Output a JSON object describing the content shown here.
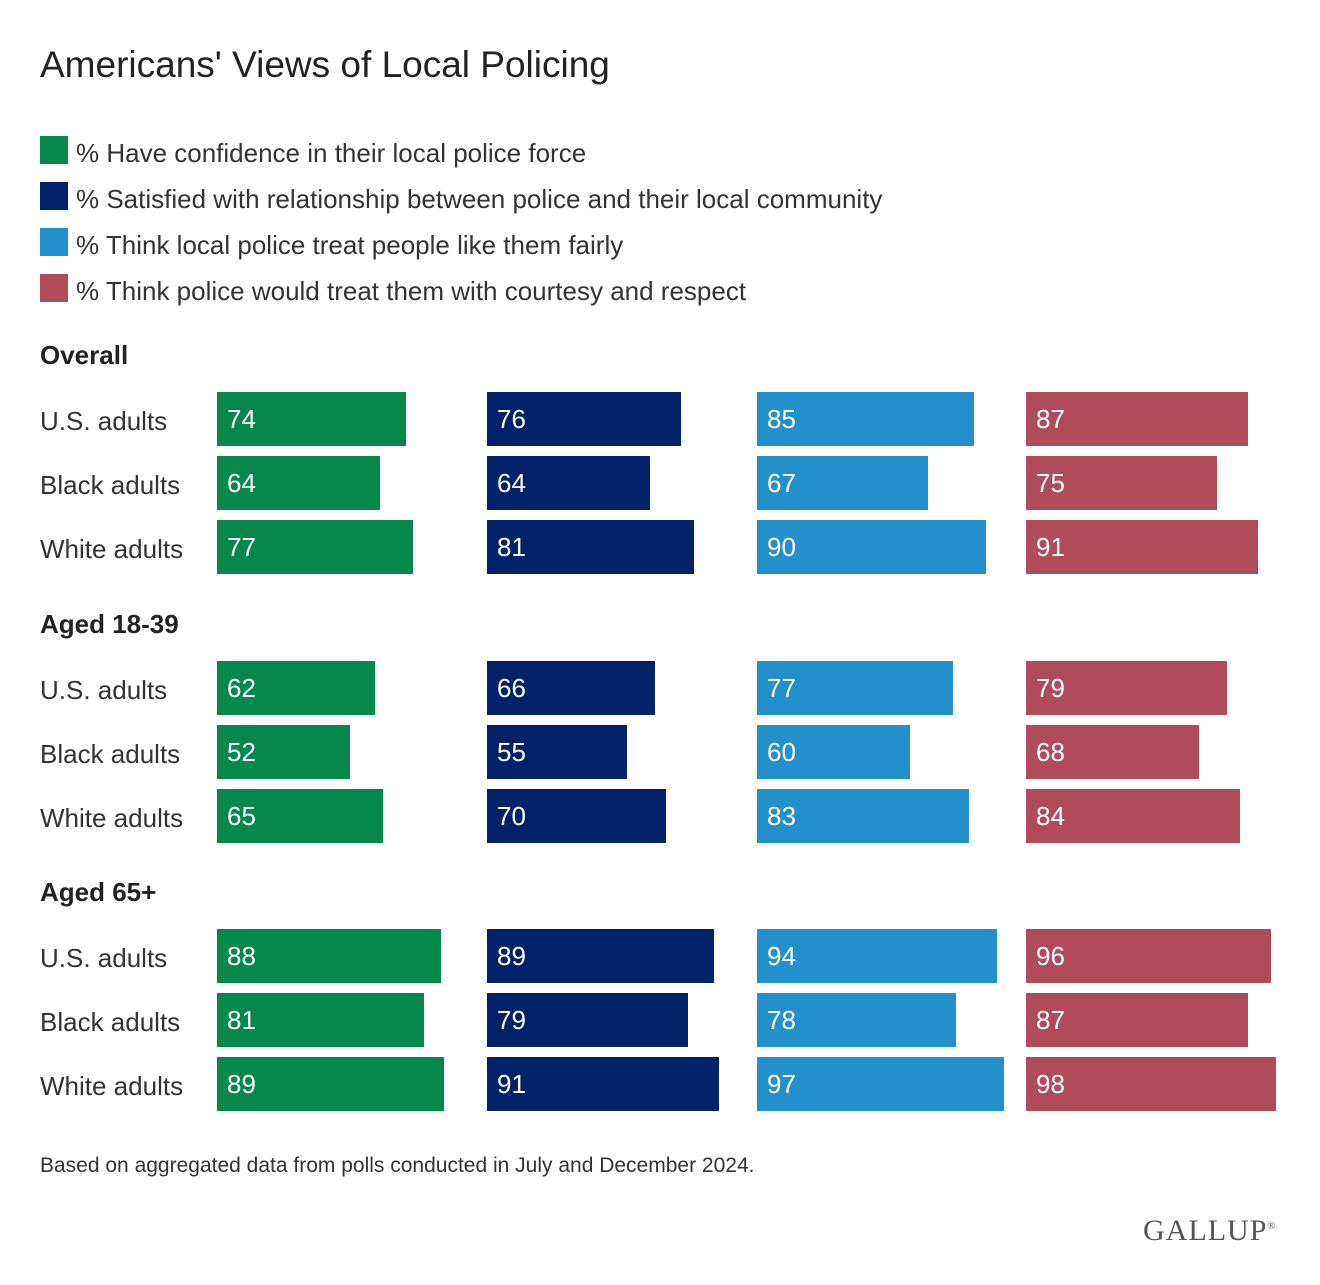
{
  "chart_data": {
    "type": "bar",
    "title": "Americans' Views of Local Policing",
    "series": [
      {
        "name": "% Have confidence in their local police force",
        "color": "#06874c"
      },
      {
        "name": "% Satisfied with relationship between police and their local community",
        "color": "#012169"
      },
      {
        "name": "% Think local police treat people like them fairly",
        "color": "#2490cb"
      },
      {
        "name": "% Think police would treat them with courtesy and respect",
        "color": "#b04b59"
      }
    ],
    "groups": [
      {
        "title": "Overall",
        "rows": [
          {
            "label": "U.S. adults",
            "values": [
              74,
              76,
              85,
              87
            ]
          },
          {
            "label": "Black adults",
            "values": [
              64,
              64,
              67,
              75
            ]
          },
          {
            "label": "White adults",
            "values": [
              77,
              81,
              90,
              91
            ]
          }
        ]
      },
      {
        "title": "Aged 18-39",
        "rows": [
          {
            "label": "U.S. adults",
            "values": [
              62,
              66,
              77,
              79
            ]
          },
          {
            "label": "Black adults",
            "values": [
              52,
              55,
              60,
              68
            ]
          },
          {
            "label": "White adults",
            "values": [
              65,
              70,
              83,
              84
            ]
          }
        ]
      },
      {
        "title": "Aged 65+",
        "rows": [
          {
            "label": "U.S. adults",
            "values": [
              88,
              89,
              94,
              96
            ]
          },
          {
            "label": "Black adults",
            "values": [
              81,
              79,
              78,
              87
            ]
          },
          {
            "label": "White adults",
            "values": [
              89,
              91,
              97,
              98
            ]
          }
        ]
      }
    ],
    "xlim": [
      0,
      100
    ],
    "legend": "top",
    "grid": false
  },
  "note": "Based on aggregated data from polls conducted in July and December 2024.",
  "logo": "GALLUP"
}
